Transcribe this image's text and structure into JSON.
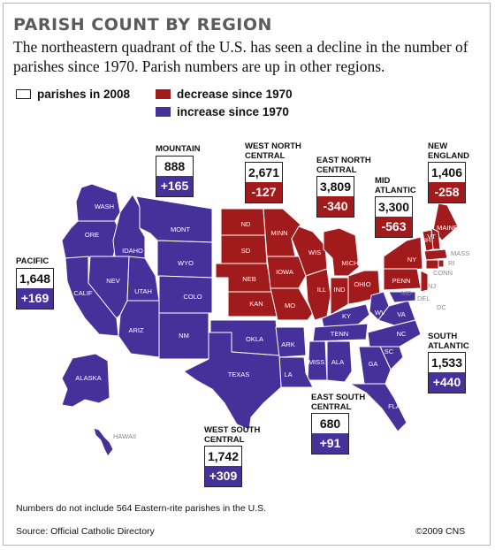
{
  "title": "PARISH COUNT BY REGION",
  "subtitle": "The northeastern quadrant of the U.S. has seen a decline in the number of parishes since 1970. Parish numbers are up in other regions.",
  "legend": {
    "count": "parishes in 2008",
    "decrease": "decrease since 1970",
    "increase": "increase since 1970"
  },
  "colors": {
    "decrease": "#a11b1d",
    "increase": "#46319a",
    "states_light": "#ffffff"
  },
  "regions": {
    "mountain": {
      "name": "MOUNTAIN",
      "count": "888",
      "change": "+165",
      "trend": "increase"
    },
    "west_north_central": {
      "name": "WEST NORTH CENTRAL",
      "count": "2,671",
      "change": "-127",
      "trend": "decrease"
    },
    "east_north_central": {
      "name": "EAST NORTH CENTRAL",
      "count": "3,809",
      "change": "-340",
      "trend": "decrease"
    },
    "mid_atlantic": {
      "name": "MID ATLANTIC",
      "count": "3,300",
      "change": "-563",
      "trend": "decrease"
    },
    "new_england": {
      "name": "NEW ENGLAND",
      "count": "1,406",
      "change": "-258",
      "trend": "decrease"
    },
    "pacific": {
      "name": "PACIFIC",
      "count": "1,648",
      "change": "+169",
      "trend": "increase"
    },
    "south_atlantic": {
      "name": "SOUTH ATLANTIC",
      "count": "1,533",
      "change": "+440",
      "trend": "increase"
    },
    "east_south_central": {
      "name": "EAST SOUTH CENTRAL",
      "count": "680",
      "change": "+91",
      "trend": "increase"
    },
    "west_south_central": {
      "name": "WEST SOUTH CENTRAL",
      "count": "1,742",
      "change": "+309",
      "trend": "increase"
    }
  },
  "states": {
    "WASH": "WASH",
    "ORE": "ORE",
    "CALIF": "CALIF",
    "NEV": "NEV",
    "IDAHO": "IDAHO",
    "MONT": "MONT",
    "WYO": "WYO",
    "UTAH": "UTAH",
    "COLO": "COLO",
    "ARIZ": "ARIZ",
    "NM": "NM",
    "ND": "ND",
    "SD": "SD",
    "NEB": "NEB",
    "KAN": "KAN",
    "MINN": "MINN",
    "IOWA": "IOWA",
    "MO": "MO",
    "WIS": "WIS",
    "MICH": "MICH",
    "ILL": "ILL",
    "IND": "IND",
    "OHIO": "OHIO",
    "NY": "NY",
    "PENN": "PENN",
    "NJ": "NJ",
    "MAINE": "MAINE",
    "VT": "VT",
    "NH": "NH",
    "MASS": "MASS",
    "RI": "RI",
    "CONN": "CONN",
    "MD": "MD",
    "DEL": "DEL",
    "DC": "DC",
    "WV": "WV",
    "VA": "VA",
    "KY": "KY",
    "TENN": "TENN",
    "NC": "NC",
    "SC": "SC",
    "GA": "GA",
    "FLA": "FLA",
    "ALA": "ALA",
    "MISS": "MISS",
    "ARK": "ARK",
    "LA": "LA",
    "OKLA": "OKLA",
    "TEXAS": "TEXAS",
    "ALASKA": "ALASKA",
    "HAWAII": "HAWAII"
  },
  "footnote": "Numbers do not include 564 Eastern-rite parishes in the U.S.",
  "source": "Source: Official Catholic Directory",
  "copyright": "©2009 CNS"
}
